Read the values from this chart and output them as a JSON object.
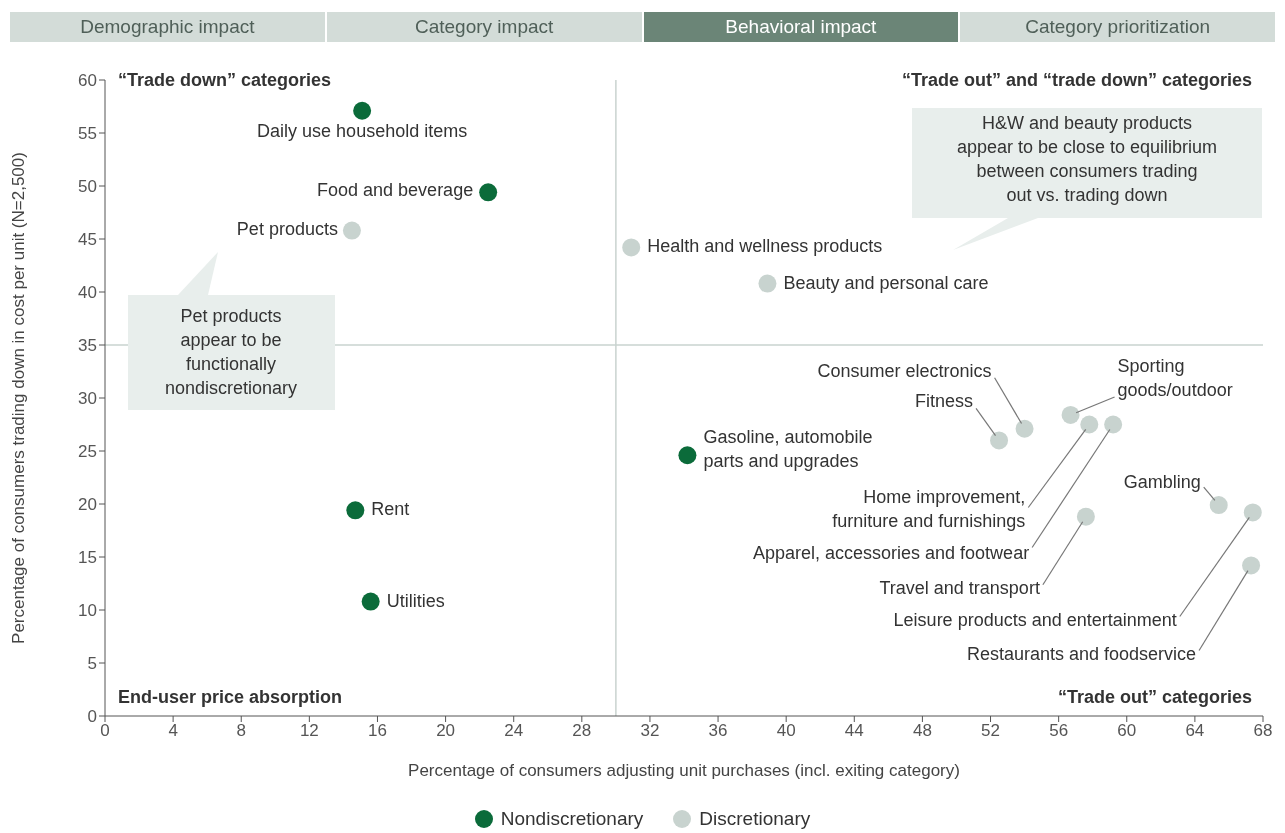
{
  "chart_data": {
    "type": "scatter",
    "xlabel": "Percentage of consumers adjusting unit purchases (incl. exiting category)",
    "ylabel": "Percentage of consumers trading down in cost per unit (N=2,500)",
    "xlim": [
      0,
      68
    ],
    "xticks": [
      0,
      4,
      8,
      12,
      16,
      20,
      24,
      28,
      32,
      36,
      40,
      44,
      48,
      52,
      56,
      60,
      64,
      68
    ],
    "ylim": [
      0,
      60
    ],
    "yticks": [
      0,
      5,
      10,
      15,
      20,
      25,
      30,
      35,
      40,
      45,
      50,
      55,
      60
    ],
    "grid": false,
    "legend": "bottom",
    "marker": "circle",
    "ref_lines": [
      {
        "axis": "x",
        "value": 30,
        "color": "#c9d3cf"
      },
      {
        "axis": "y",
        "value": 35,
        "color": "#c9d3cf"
      }
    ],
    "series": [
      {
        "name": "Nondiscretionary",
        "color": "#0b6b3a",
        "x": [
          15.1,
          22.5,
          14.7,
          15.6,
          34.2
        ],
        "values": [
          57.1,
          49.4,
          19.4,
          10.8,
          24.6
        ]
      },
      {
        "name": "Discretionary",
        "color": "#c8d3cf",
        "x": [
          14.5,
          30.9,
          38.9,
          52.5,
          54.0,
          56.7,
          57.8,
          59.2,
          57.6,
          65.4,
          67.4,
          67.3
        ],
        "values": [
          45.8,
          44.2,
          40.8,
          26.0,
          27.1,
          28.4,
          27.5,
          27.5,
          18.8,
          19.9,
          19.2,
          14.2
        ]
      }
    ],
    "annotations": [
      "Demographic impact",
      "Category impact",
      "Behavioral impact",
      "Category prioritization",
      "“Trade down” categories",
      "“Trade out” and “trade down” categories",
      "End-user price absorption",
      "“Trade out” categories",
      "Pet products\nappear to be\nfunctionally\nnondiscretionary",
      "H&W and beauty products\nappear to be close to equilibrium\nbetween consumers trading\nout vs. trading down",
      {
        "text": "Daily use household items",
        "x": 15.1,
        "y": 57.1
      },
      {
        "text": "Food and beverage",
        "x": 22.5,
        "y": 49.4
      },
      {
        "text": "Pet products",
        "x": 14.5,
        "y": 45.8
      },
      {
        "text": "Rent",
        "x": 14.7,
        "y": 19.4
      },
      {
        "text": "Utilities",
        "x": 15.6,
        "y": 10.8
      },
      {
        "text": "Gasoline, automobile\nparts and upgrades",
        "x": 34.2,
        "y": 24.6
      },
      {
        "text": "Health and wellness products",
        "x": 30.9,
        "y": 44.2
      },
      {
        "text": "Beauty and personal care",
        "x": 38.9,
        "y": 40.8
      },
      {
        "text": "Fitness",
        "x": 52.5,
        "y": 26.0
      },
      {
        "text": "Consumer electronics",
        "x": 54.0,
        "y": 27.1
      },
      {
        "text": "Sporting\ngoods/outdoor",
        "x": 56.7,
        "y": 28.4
      },
      {
        "text": "Home improvement,\nfurniture and furnishings",
        "x": 57.8,
        "y": 27.5
      },
      {
        "text": "Apparel, accessories and footwear",
        "x": 59.2,
        "y": 27.5
      },
      {
        "text": "Travel and transport",
        "x": 57.6,
        "y": 18.8
      },
      {
        "text": "Gambling",
        "x": 65.4,
        "y": 19.9
      },
      {
        "text": "Leisure products and entertainment",
        "x": 67.4,
        "y": 19.2
      },
      {
        "text": "Restaurants and foodservice",
        "x": 67.3,
        "y": 14.2
      }
    ]
  }
}
